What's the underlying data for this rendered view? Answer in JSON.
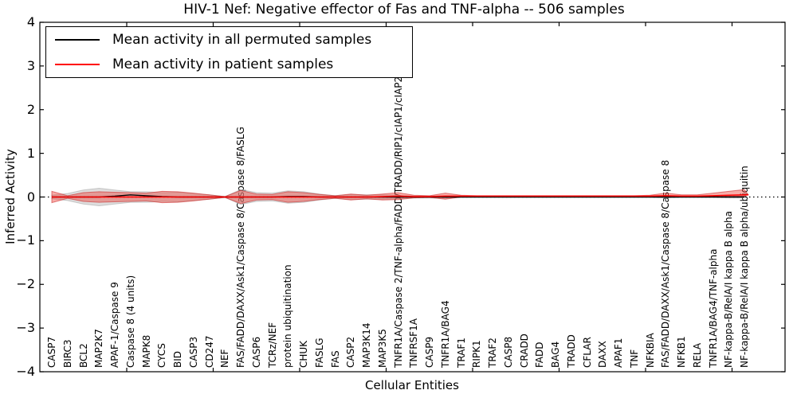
{
  "title": "HIV-1 Nef: Negative effector of Fas and TNF-alpha -- 506 samples",
  "xlabel": "Cellular Entities",
  "ylabel": "Inferred Activity",
  "yticks": [
    "4",
    "3",
    "2",
    "1",
    "0",
    "−1",
    "−2",
    "−3",
    "−4"
  ],
  "legend": {
    "items": [
      {
        "label": "Mean activity in all permuted samples",
        "color": "#000000"
      },
      {
        "label": "Mean activity in patient samples",
        "color": "#ff0000"
      }
    ]
  },
  "chart_data": {
    "type": "line",
    "title": "HIV-1 Nef: Negative effector of Fas and TNF-alpha -- 506 samples",
    "xlabel": "Cellular Entities",
    "ylabel": "Inferred Activity",
    "ylim": [
      -4,
      4
    ],
    "grid": false,
    "legend_position": "upper left",
    "zero_line": {
      "y": 0,
      "style": "dotted",
      "color": "#000000"
    },
    "categories": [
      "CASP7",
      "BIRC3",
      "BCL2",
      "MAP2K7",
      "APAF-1/Caspase 9",
      "Caspase 8 (4 units)",
      "MAPK8",
      "CYCS",
      "BID",
      "CASP3",
      "CD247",
      "NEF",
      "FAS/FADD/DAXX/Ask1/Caspase 8/Caspase 8/FASLG",
      "CASP6",
      "TCRz/NEF",
      "protein ubiquitination",
      "CHUK",
      "FASLG",
      "FAS",
      "CASP2",
      "MAP3K14",
      "MAP3K5",
      "TNFR1A/Caspase 2/TNF-alpha/FADD/TRADD/RIP1/cIAP1/cIAP2/TRAF",
      "TNFRSF1A",
      "CASP9",
      "TNFR1A/BAG4",
      "TRAF1",
      "RIPK1",
      "TRAF2",
      "CASP8",
      "CRADD",
      "FADD",
      "BAG4",
      "TRADD",
      "CFLAR",
      "DAXX",
      "APAF1",
      "TNF",
      "NFKBIA",
      "FAS/FADD/DAXX/Ask1/Caspase 8/Caspase 8",
      "NFKB1",
      "RELA",
      "TNFR1A/BAG4/TNF-alpha",
      "NF-kappa-B/RelA/I kappa B alpha",
      "NF-kappa-B/RelA/I kappa B alpha/ubiquitin"
    ],
    "series": [
      {
        "name": "Mean activity in all permuted samples",
        "color": "#000000",
        "values": [
          0,
          0,
          0,
          0,
          0.02,
          0.05,
          0.03,
          0.01,
          0,
          0,
          0,
          0,
          0,
          0,
          0,
          0.01,
          0.01,
          0,
          0,
          0,
          0,
          0,
          0,
          0,
          0,
          0,
          0,
          0,
          0,
          0,
          0,
          0,
          0,
          0,
          0,
          0,
          0,
          0,
          0,
          0,
          0,
          0,
          0,
          0,
          0
        ]
      },
      {
        "name": "Mean activity in patient samples",
        "color": "#ff0000",
        "values": [
          0,
          0,
          0,
          0,
          0,
          0,
          0,
          0,
          0,
          0,
          0,
          0,
          0,
          0,
          0,
          0,
          0,
          0,
          0,
          0,
          0,
          0.01,
          0.02,
          0.01,
          0.01,
          0.02,
          0.02,
          0.02,
          0.02,
          0.02,
          0.02,
          0.02,
          0.02,
          0.02,
          0.02,
          0.02,
          0.02,
          0.02,
          0.02,
          0.03,
          0.02,
          0.02,
          0.03,
          0.04,
          0.05
        ]
      }
    ],
    "bands": [
      {
        "name": "permuted-samples-std-band",
        "fill": "#bebebe",
        "fill_opacity": 0.5,
        "edge": "#aaaaaa",
        "half_width": [
          0.04,
          0.08,
          0.16,
          0.2,
          0.16,
          0.12,
          0.12,
          0.1,
          0.11,
          0.08,
          0.05,
          0.01,
          0.17,
          0.1,
          0.09,
          0.14,
          0.12,
          0.07,
          0.03,
          0.06,
          0.05,
          0.05,
          0.04,
          0.02,
          0.02,
          0.03,
          0.01,
          0.01,
          0.01,
          0.01,
          0.01,
          0.01,
          0.01,
          0.01,
          0.01,
          0.01,
          0.01,
          0.01,
          0.01,
          0.02,
          0.01,
          0.01,
          0.01,
          0.02,
          0.02
        ]
      },
      {
        "name": "patient-samples-std-band",
        "fill": "#eb3c32",
        "fill_opacity": 0.42,
        "edge": "#c81e1e",
        "upper": [
          0.13,
          0.03,
          0.1,
          0.12,
          0.11,
          0.1,
          0.09,
          0.13,
          0.12,
          0.09,
          0.05,
          0.01,
          0.15,
          0.07,
          0.06,
          0.12,
          0.1,
          0.06,
          0.03,
          0.07,
          0.04,
          0.07,
          0.1,
          0.04,
          0.03,
          0.09,
          0.04,
          0.03,
          0.03,
          0.03,
          0.03,
          0.03,
          0.03,
          0.03,
          0.03,
          0.03,
          0.03,
          0.03,
          0.04,
          0.09,
          0.05,
          0.05,
          0.09,
          0.13,
          0.17
        ],
        "lower": [
          -0.13,
          -0.03,
          -0.1,
          -0.12,
          -0.11,
          -0.1,
          -0.09,
          -0.13,
          -0.12,
          -0.09,
          -0.05,
          -0.01,
          -0.15,
          -0.07,
          -0.06,
          -0.12,
          -0.1,
          -0.06,
          -0.03,
          -0.07,
          -0.04,
          -0.07,
          -0.06,
          -0.02,
          -0.01,
          -0.05,
          0,
          0.01,
          0.01,
          0.01,
          0.01,
          0.01,
          0.01,
          0.01,
          0.01,
          0.01,
          0.01,
          0.01,
          0.01,
          0.01,
          0.01,
          0.01,
          0.01,
          0.02,
          0.02
        ]
      }
    ]
  }
}
